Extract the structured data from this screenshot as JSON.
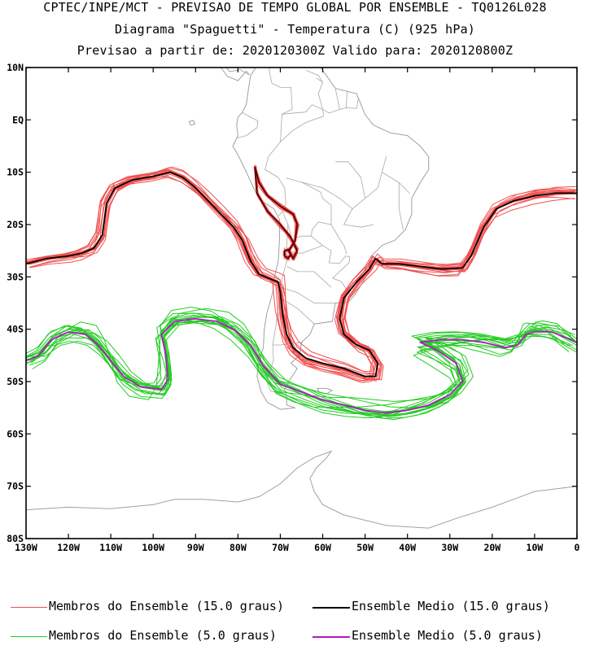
{
  "chart_data": {
    "type": "line",
    "title": "CPTEC/INPE/MCT - PREVISAO DE TEMPO GLOBAL POR ENSEMBLE - TQ0126L028",
    "subtitle": "Diagrama \"Spaguetti\" - Temperatura (C) (925 hPa)",
    "run_info": "Previsao a partir de: 2020120300Z  Valido para: 2020120800Z",
    "xlim": [
      -130,
      0
    ],
    "ylim": [
      -80,
      10
    ],
    "x_ticks": [
      {
        "v": -130,
        "label": "130W"
      },
      {
        "v": -120,
        "label": "120W"
      },
      {
        "v": -110,
        "label": "110W"
      },
      {
        "v": -100,
        "label": "100W"
      },
      {
        "v": -90,
        "label": "90W"
      },
      {
        "v": -80,
        "label": "80W"
      },
      {
        "v": -70,
        "label": "70W"
      },
      {
        "v": -60,
        "label": "60W"
      },
      {
        "v": -50,
        "label": "50W"
      },
      {
        "v": -40,
        "label": "40W"
      },
      {
        "v": -30,
        "label": "30W"
      },
      {
        "v": -20,
        "label": "20W"
      },
      {
        "v": -10,
        "label": "10W"
      },
      {
        "v": 0,
        "label": "0"
      }
    ],
    "y_ticks": [
      {
        "v": 10,
        "label": "10N"
      },
      {
        "v": 0,
        "label": "EQ"
      },
      {
        "v": -10,
        "label": "10S"
      },
      {
        "v": -20,
        "label": "20S"
      },
      {
        "v": -30,
        "label": "30S"
      },
      {
        "v": -40,
        "label": "40S"
      },
      {
        "v": -50,
        "label": "50S"
      },
      {
        "v": -60,
        "label": "60S"
      },
      {
        "v": -70,
        "label": "70S"
      },
      {
        "v": -80,
        "label": "80S"
      }
    ],
    "colors": {
      "member15": "#f05050",
      "mean15": "#000000",
      "member5": "#22cc22",
      "mean5": "#b01cc0",
      "andes15": "#5a0000",
      "coast": "#a0a0a0",
      "border": "#a8a8a8"
    },
    "series": [
      {
        "name": "Ensemble Medio (15.0 graus)",
        "role": "mean15",
        "points": [
          [
            -130,
            -27.5
          ],
          [
            -125,
            -26.5
          ],
          [
            -120,
            -26
          ],
          [
            -117,
            -25.5
          ],
          [
            -114,
            -24.5
          ],
          [
            -112,
            -22
          ],
          [
            -111,
            -16
          ],
          [
            -109,
            -13
          ],
          [
            -105,
            -11.5
          ],
          [
            -100,
            -10.8
          ],
          [
            -96,
            -10
          ],
          [
            -93,
            -11
          ],
          [
            -90,
            -13
          ],
          [
            -87,
            -15.5
          ],
          [
            -84,
            -18
          ],
          [
            -81,
            -20.5
          ],
          [
            -79,
            -23
          ],
          [
            -77,
            -27
          ],
          [
            -75,
            -29.5
          ],
          [
            -72,
            -30.5
          ],
          [
            -70.5,
            -31
          ],
          [
            -70,
            -33
          ],
          [
            -69.5,
            -37
          ],
          [
            -68.5,
            -41
          ],
          [
            -67,
            -43.5
          ],
          [
            -64,
            -45.5
          ],
          [
            -60,
            -46.5
          ],
          [
            -55,
            -47.5
          ],
          [
            -50,
            -49
          ],
          [
            -47.5,
            -49
          ],
          [
            -47,
            -46.5
          ],
          [
            -49,
            -44
          ],
          [
            -52,
            -43
          ],
          [
            -55,
            -41
          ],
          [
            -56,
            -38
          ],
          [
            -55,
            -34
          ],
          [
            -52,
            -31
          ],
          [
            -49,
            -28.5
          ],
          [
            -47.5,
            -26.5
          ],
          [
            -46,
            -27.5
          ],
          [
            -42,
            -27.5
          ],
          [
            -37,
            -28
          ],
          [
            -32,
            -28.5
          ],
          [
            -27,
            -28.3
          ],
          [
            -25,
            -26
          ],
          [
            -22,
            -20.5
          ],
          [
            -19,
            -17
          ],
          [
            -15,
            -15.5
          ],
          [
            -10,
            -14.5
          ],
          [
            -5,
            -14
          ],
          [
            0,
            -14
          ]
        ]
      },
      {
        "name": "Ensemble Medio (5.0 graus)",
        "role": "mean5",
        "points": [
          [
            -130,
            -46
          ],
          [
            -127,
            -45
          ],
          [
            -124,
            -42
          ],
          [
            -120,
            -40.5
          ],
          [
            -116,
            -41
          ],
          [
            -113,
            -43
          ],
          [
            -110,
            -46
          ],
          [
            -107,
            -49
          ],
          [
            -103,
            -51
          ],
          [
            -98,
            -51.5
          ],
          [
            -96.5,
            -49.5
          ],
          [
            -97,
            -45
          ],
          [
            -98,
            -41
          ],
          [
            -95,
            -38.5
          ],
          [
            -90,
            -38
          ],
          [
            -85,
            -38.5
          ],
          [
            -81,
            -40
          ],
          [
            -77,
            -43
          ],
          [
            -74,
            -47
          ],
          [
            -70,
            -50.5
          ],
          [
            -65,
            -52
          ],
          [
            -60,
            -53.5
          ],
          [
            -55,
            -54.5
          ],
          [
            -50,
            -55.5
          ],
          [
            -45,
            -56
          ],
          [
            -40,
            -55.5
          ],
          [
            -35,
            -54.5
          ],
          [
            -30,
            -52.5
          ],
          [
            -27,
            -50
          ],
          [
            -28.5,
            -46.5
          ],
          [
            -33,
            -44
          ],
          [
            -37,
            -42.5
          ],
          [
            -32,
            -42
          ],
          [
            -27,
            -42
          ],
          [
            -22,
            -42.5
          ],
          [
            -17,
            -43.5
          ],
          [
            -14,
            -43
          ],
          [
            -12,
            -41
          ],
          [
            -10,
            -40.5
          ],
          [
            -6,
            -40.5
          ],
          [
            -3,
            -41.5
          ],
          [
            0,
            -42.5
          ]
        ]
      },
      {
        "name": "Ensemble Medio (15.0 graus) - Andes",
        "role": "andes15",
        "points": [
          [
            -76,
            -9
          ],
          [
            -75,
            -12
          ],
          [
            -73,
            -14.5
          ],
          [
            -70,
            -16.5
          ],
          [
            -67,
            -18
          ],
          [
            -66,
            -20
          ],
          [
            -66.5,
            -23
          ],
          [
            -68,
            -25
          ],
          [
            -67,
            -26.5
          ],
          [
            -66,
            -25
          ],
          [
            -67.5,
            -22.5
          ],
          [
            -70,
            -20
          ],
          [
            -73,
            -17.5
          ],
          [
            -75.5,
            -14
          ],
          [
            -76,
            -9
          ]
        ]
      },
      {
        "name": "Ensemble Medio (15.0 graus) - Andes 2",
        "role": "andes15",
        "points": [
          [
            -69,
            -25
          ],
          [
            -68,
            -24.8
          ],
          [
            -67.5,
            -25.8
          ],
          [
            -68.2,
            -26.4
          ],
          [
            -69,
            -26
          ],
          [
            -69,
            -25
          ]
        ]
      }
    ],
    "legend": [
      {
        "label": "Membros do Ensemble (15.0 graus)",
        "role": "member15"
      },
      {
        "label": "Ensemble Medio (15.0 graus)",
        "role": "mean15"
      },
      {
        "label": "Membros do Ensemble (5.0 graus)",
        "role": "member5"
      },
      {
        "label": "Ensemble Medio (5.0 graus)",
        "role": "mean5"
      }
    ],
    "ensemble_members": 15,
    "legend_position": "bottom"
  }
}
